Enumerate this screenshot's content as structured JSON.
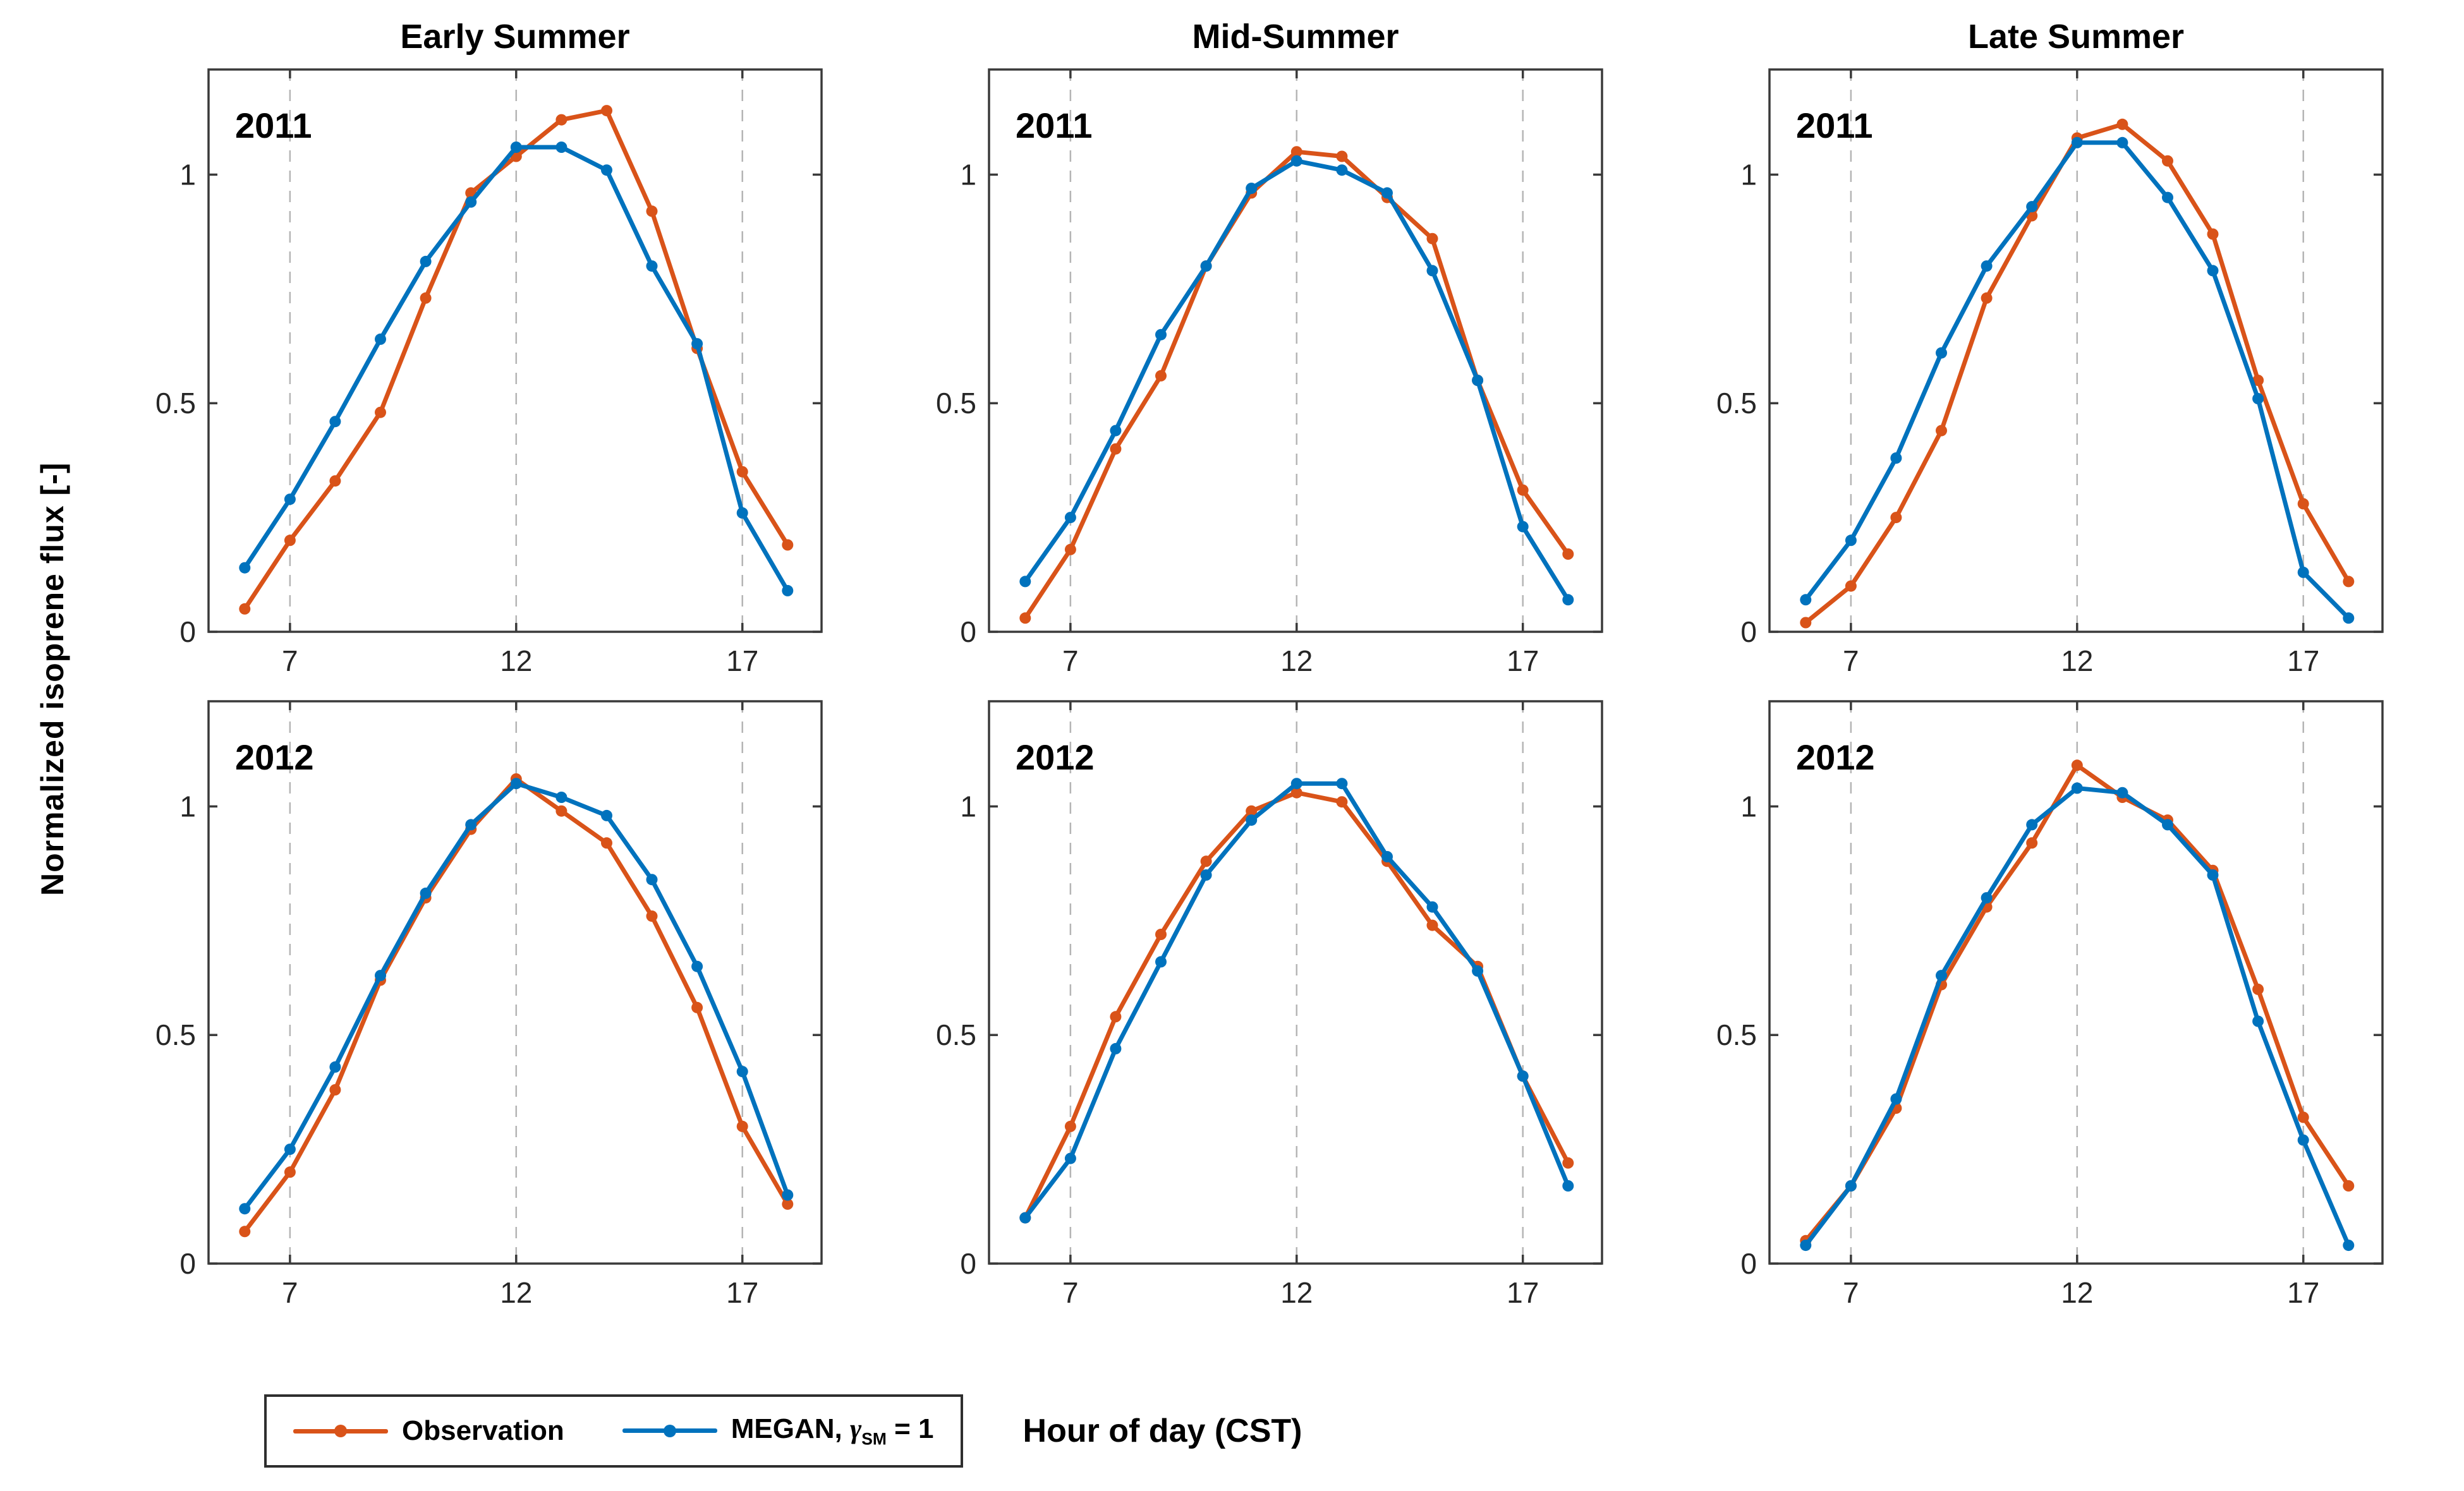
{
  "figure": {
    "background": "#ffffff"
  },
  "ylabel": "Normalized isoprene flux [-]",
  "xlabel": "Hour of day (CST)",
  "colors": {
    "observation": "#D95319",
    "megan": "#0072BD",
    "axis": "#3a3a3a",
    "tick_label": "#262626",
    "gridline": "#b5b5b5"
  },
  "legend": {
    "items": [
      {
        "label": "Observation",
        "color_key": "observation"
      },
      {
        "prefix": "MEGAN, ",
        "gamma": "γ",
        "sub": "SM",
        "suffix": " = 1",
        "color_key": "megan"
      }
    ]
  },
  "chart_data": {
    "type": "line",
    "title": "",
    "grid_layout": {
      "row_labels": [
        "2011",
        "2012"
      ],
      "col_titles": [
        "Early Summer",
        "Mid-Summer",
        "Late Summer"
      ]
    },
    "x": [
      6,
      7,
      8,
      9,
      10,
      11,
      12,
      13,
      14,
      15,
      16,
      17,
      18
    ],
    "xlim": [
      5.2,
      18.75
    ],
    "ylim": [
      0,
      1.23
    ],
    "xticks": [
      7,
      12,
      17
    ],
    "yticks": [
      0,
      0.5,
      1
    ],
    "xgrid": true,
    "ygrid": false,
    "series_names": [
      "Observation",
      "MEGAN, γ_SM = 1"
    ],
    "panels": [
      {
        "col": "Early Summer",
        "year": "2011",
        "observation": [
          0.05,
          0.2,
          0.33,
          0.48,
          0.73,
          0.96,
          1.04,
          1.12,
          1.14,
          0.92,
          0.62,
          0.35,
          0.19
        ],
        "megan": [
          0.14,
          0.29,
          0.46,
          0.64,
          0.81,
          0.94,
          1.06,
          1.06,
          1.01,
          0.8,
          0.63,
          0.26,
          0.09
        ]
      },
      {
        "col": "Mid-Summer",
        "year": "2011",
        "observation": [
          0.03,
          0.18,
          0.4,
          0.56,
          0.8,
          0.96,
          1.05,
          1.04,
          0.95,
          0.86,
          0.55,
          0.31,
          0.17
        ],
        "megan": [
          0.11,
          0.25,
          0.44,
          0.65,
          0.8,
          0.97,
          1.03,
          1.01,
          0.96,
          0.79,
          0.55,
          0.23,
          0.07
        ]
      },
      {
        "col": "Late Summer",
        "year": "2011",
        "observation": [
          0.02,
          0.1,
          0.25,
          0.44,
          0.73,
          0.91,
          1.08,
          1.11,
          1.03,
          0.87,
          0.55,
          0.28,
          0.11
        ],
        "megan": [
          0.07,
          0.2,
          0.38,
          0.61,
          0.8,
          0.93,
          1.07,
          1.07,
          0.95,
          0.79,
          0.51,
          0.13,
          0.03
        ]
      },
      {
        "col": "Early Summer",
        "year": "2012",
        "observation": [
          0.07,
          0.2,
          0.38,
          0.62,
          0.8,
          0.95,
          1.06,
          0.99,
          0.92,
          0.76,
          0.56,
          0.3,
          0.13
        ],
        "megan": [
          0.12,
          0.25,
          0.43,
          0.63,
          0.81,
          0.96,
          1.05,
          1.02,
          0.98,
          0.84,
          0.65,
          0.42,
          0.15
        ]
      },
      {
        "col": "Mid-Summer",
        "year": "2012",
        "observation": [
          0.1,
          0.3,
          0.54,
          0.72,
          0.88,
          0.99,
          1.03,
          1.01,
          0.88,
          0.74,
          0.65,
          0.41,
          0.22
        ],
        "megan": [
          0.1,
          0.23,
          0.47,
          0.66,
          0.85,
          0.97,
          1.05,
          1.05,
          0.89,
          0.78,
          0.64,
          0.41,
          0.17
        ]
      },
      {
        "col": "Late Summer",
        "year": "2012",
        "observation": [
          0.05,
          0.17,
          0.34,
          0.61,
          0.78,
          0.92,
          1.09,
          1.02,
          0.97,
          0.86,
          0.6,
          0.32,
          0.17
        ],
        "megan": [
          0.04,
          0.17,
          0.36,
          0.63,
          0.8,
          0.96,
          1.04,
          1.03,
          0.96,
          0.85,
          0.53,
          0.27,
          0.04
        ]
      }
    ]
  }
}
